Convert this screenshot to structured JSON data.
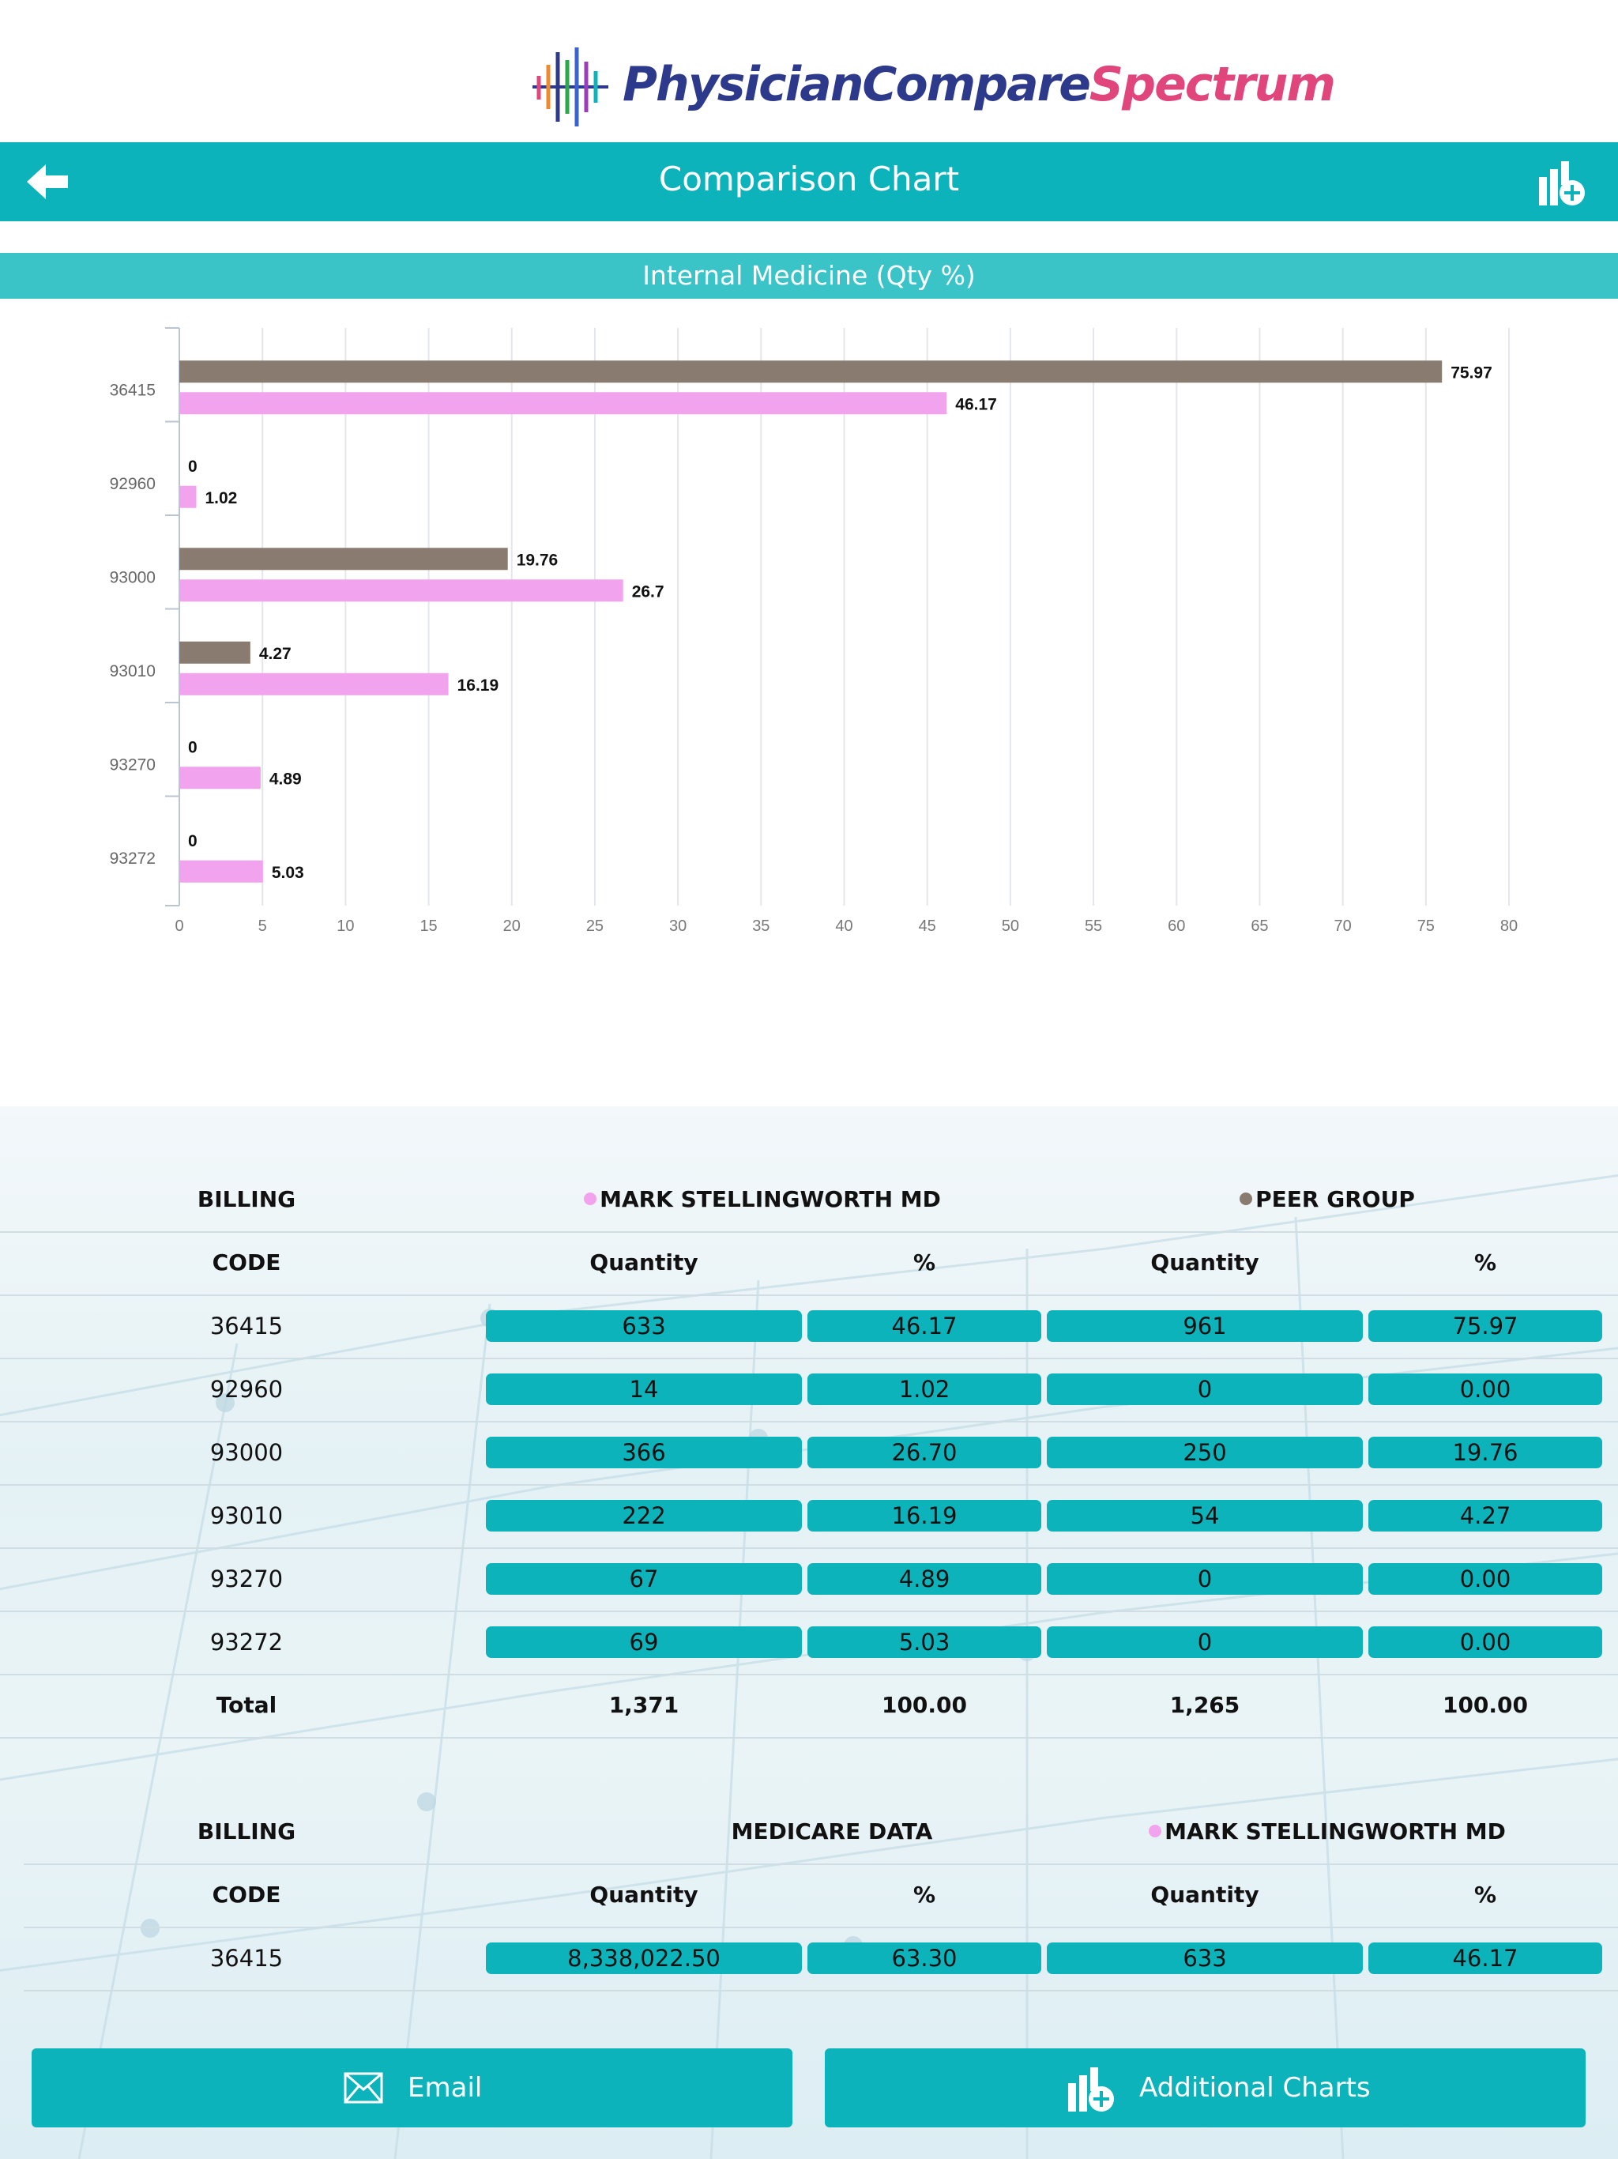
{
  "header": {
    "logo_text_main": "PhysicianCompare",
    "logo_text_spec": "Spectrum",
    "nav_title": "Comparison Chart",
    "back_icon": "arrow-left-icon",
    "charts_icon": "add-chart-icon"
  },
  "chart_banner": "Internal Medicine (Qty %)",
  "chart_data": {
    "type": "bar",
    "orientation": "horizontal",
    "title": "Internal Medicine (Qty %)",
    "categories": [
      "36415",
      "92960",
      "93000",
      "93010",
      "93270",
      "93272"
    ],
    "series": [
      {
        "name": "PEER GROUP",
        "color": "#8a7b70",
        "values": [
          75.97,
          0,
          19.76,
          4.27,
          0,
          0
        ],
        "labels": [
          "75.97",
          "0",
          "19.76",
          "4.27",
          "0",
          "0"
        ]
      },
      {
        "name": "MARK STELLINGWORTH MD",
        "color": "#f2a3ee",
        "values": [
          46.17,
          1.02,
          26.7,
          16.19,
          4.89,
          5.03
        ],
        "labels": [
          "46.17",
          "1.02",
          "26.7",
          "16.19",
          "4.89",
          "5.03"
        ]
      }
    ],
    "xlim": [
      0,
      80
    ],
    "xticks": [
      "0",
      "5",
      "10",
      "15",
      "20",
      "25",
      "30",
      "35",
      "40",
      "45",
      "50",
      "55",
      "60",
      "65",
      "70",
      "75",
      "80"
    ],
    "grid": true,
    "legend": "none"
  },
  "table1": {
    "header": {
      "code": "BILLING CODE",
      "group_a": "MARK STELLINGWORTH MD",
      "group_a_color": "#f2a3ee",
      "group_b": "PEER GROUP",
      "group_b_color": "#8a7b70"
    },
    "subheader": {
      "qty_a": "Quantity",
      "pct_a": "%",
      "qty_b": "Quantity",
      "pct_b": "%"
    },
    "rows": [
      {
        "code": "36415",
        "qty_a": "633",
        "pct_a": "46.17",
        "qty_b": "961",
        "pct_b": "75.97"
      },
      {
        "code": "92960",
        "qty_a": "14",
        "pct_a": "1.02",
        "qty_b": "0",
        "pct_b": "0.00"
      },
      {
        "code": "93000",
        "qty_a": "366",
        "pct_a": "26.70",
        "qty_b": "250",
        "pct_b": "19.76"
      },
      {
        "code": "93010",
        "qty_a": "222",
        "pct_a": "16.19",
        "qty_b": "54",
        "pct_b": "4.27"
      },
      {
        "code": "93270",
        "qty_a": "67",
        "pct_a": "4.89",
        "qty_b": "0",
        "pct_b": "0.00"
      },
      {
        "code": "93272",
        "qty_a": "69",
        "pct_a": "5.03",
        "qty_b": "0",
        "pct_b": "0.00"
      }
    ],
    "total": {
      "label": "Total",
      "qty_a": "1,371",
      "pct_a": "100.00",
      "qty_b": "1,265",
      "pct_b": "100.00"
    }
  },
  "table2": {
    "header": {
      "code": "BILLING CODE",
      "group_a": "MEDICARE DATA",
      "group_b": "MARK STELLINGWORTH MD",
      "group_b_color": "#f2a3ee"
    },
    "subheader": {
      "qty_a": "Quantity",
      "pct_a": "%",
      "qty_b": "Quantity",
      "pct_b": "%"
    },
    "rows": [
      {
        "code": "36415",
        "qty_a": "8,338,022.50",
        "pct_a": "63.30",
        "qty_b": "633",
        "pct_b": "46.17"
      }
    ]
  },
  "footer": {
    "email_label": "Email",
    "email_icon": "envelope-icon",
    "charts_label": "Additional Charts",
    "charts_icon": "add-chart-icon"
  }
}
